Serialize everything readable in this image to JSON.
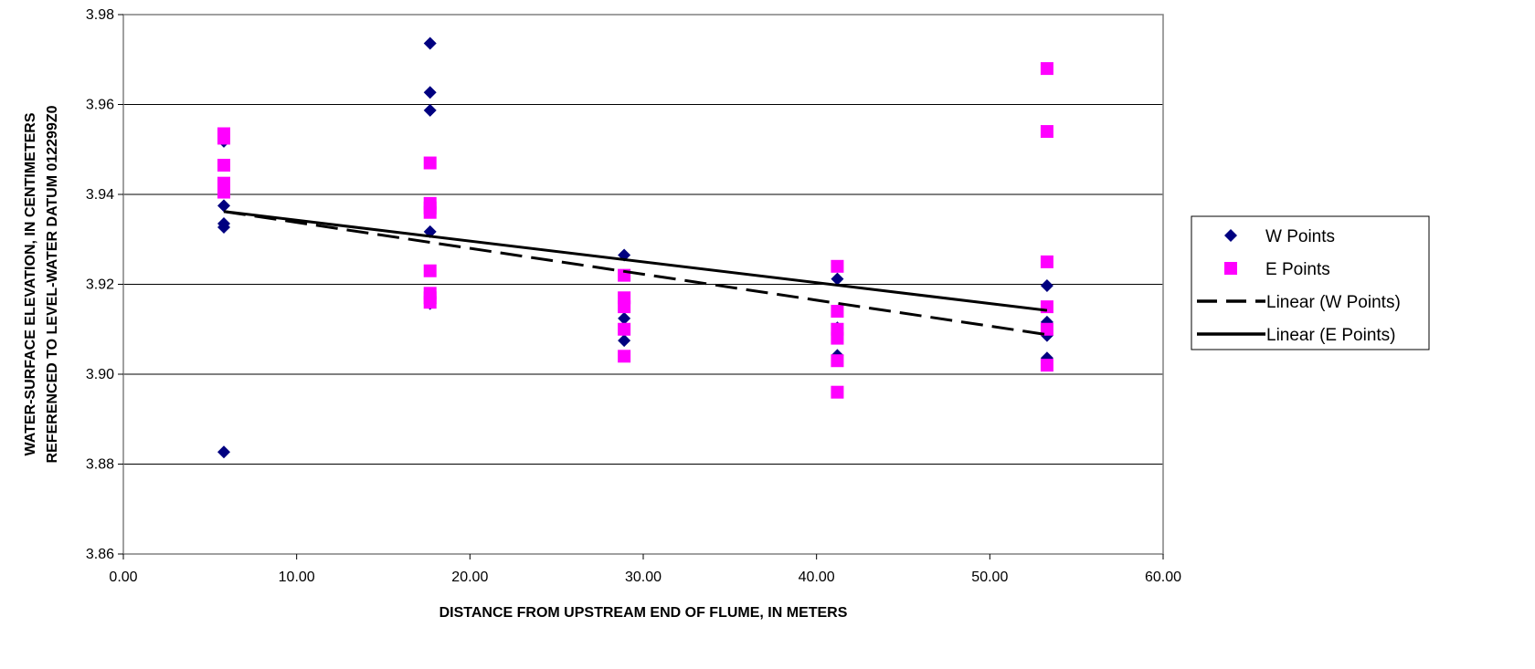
{
  "chart_data": {
    "type": "scatter",
    "xlabel": "DISTANCE FROM UPSTREAM END OF FLUME, IN METERS",
    "ylabel": [
      "WATER-SURFACE ELEVATION, IN CENTIMETERS",
      "REFERENCED TO LEVEL-WATER DATUM 012299Z0"
    ],
    "xlim": [
      0,
      60
    ],
    "ylim": [
      3.86,
      3.98
    ],
    "x_ticks": [
      "0.00",
      "10.00",
      "20.00",
      "30.00",
      "40.00",
      "50.00",
      "60.00"
    ],
    "y_ticks": [
      "3.86",
      "3.88",
      "3.90",
      "3.92",
      "3.94",
      "3.96",
      "3.98"
    ],
    "x_tick_values": [
      0,
      10,
      20,
      30,
      40,
      50,
      60
    ],
    "y_tick_values": [
      3.86,
      3.88,
      3.9,
      3.92,
      3.94,
      3.96,
      3.98
    ],
    "grid": "horizontal",
    "legend_position": "right",
    "series": [
      {
        "name": "W Points",
        "kind": "points",
        "marker": "diamond",
        "color": "#000080",
        "points": [
          [
            5.8,
            3.9518
          ],
          [
            5.8,
            3.9375
          ],
          [
            5.8,
            3.9335
          ],
          [
            5.8,
            3.9327
          ],
          [
            5.8,
            3.8827
          ],
          [
            17.7,
            3.9736
          ],
          [
            17.7,
            3.9627
          ],
          [
            17.7,
            3.9587
          ],
          [
            17.7,
            3.9317
          ],
          [
            17.7,
            3.9157
          ],
          [
            28.9,
            3.9265
          ],
          [
            28.9,
            3.9124
          ],
          [
            28.9,
            3.9075
          ],
          [
            41.2,
            3.9212
          ],
          [
            41.2,
            3.9103
          ],
          [
            41.2,
            3.9042
          ],
          [
            53.3,
            3.9197
          ],
          [
            53.3,
            3.9116
          ],
          [
            53.3,
            3.9086
          ],
          [
            53.3,
            3.9036
          ]
        ]
      },
      {
        "name": "E Points",
        "kind": "points",
        "marker": "square",
        "color": "#ff00ff",
        "points": [
          [
            5.8,
            3.9535
          ],
          [
            5.8,
            3.9525
          ],
          [
            5.8,
            3.9465
          ],
          [
            5.8,
            3.9425
          ],
          [
            5.8,
            3.9405
          ],
          [
            17.7,
            3.947
          ],
          [
            17.7,
            3.938
          ],
          [
            17.7,
            3.937
          ],
          [
            17.7,
            3.936
          ],
          [
            17.7,
            3.923
          ],
          [
            17.7,
            3.918
          ],
          [
            17.7,
            3.917
          ],
          [
            17.7,
            3.916
          ],
          [
            28.9,
            3.922
          ],
          [
            28.9,
            3.917
          ],
          [
            28.9,
            3.915
          ],
          [
            28.9,
            3.91
          ],
          [
            28.9,
            3.904
          ],
          [
            41.2,
            3.924
          ],
          [
            41.2,
            3.914
          ],
          [
            41.2,
            3.91
          ],
          [
            41.2,
            3.908
          ],
          [
            41.2,
            3.903
          ],
          [
            41.2,
            3.896
          ],
          [
            53.3,
            3.968
          ],
          [
            53.3,
            3.954
          ],
          [
            53.3,
            3.925
          ],
          [
            53.3,
            3.915
          ],
          [
            53.3,
            3.91
          ],
          [
            53.3,
            3.902
          ]
        ]
      },
      {
        "name": "Linear (W Points)",
        "kind": "line",
        "style": "dashed",
        "color": "#000000",
        "points": [
          [
            5.8,
            3.9362
          ],
          [
            53.3,
            3.9088
          ]
        ]
      },
      {
        "name": "Linear (E Points)",
        "kind": "line",
        "style": "solid",
        "color": "#000000",
        "points": [
          [
            5.8,
            3.9362
          ],
          [
            53.3,
            3.9142
          ]
        ]
      }
    ]
  }
}
